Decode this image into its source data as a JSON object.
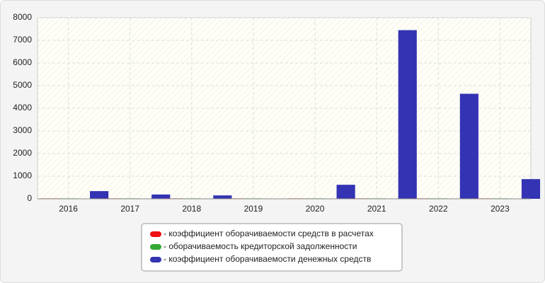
{
  "chart_data": {
    "type": "bar",
    "categories": [
      "2016",
      "2017",
      "2018",
      "2019",
      "2020",
      "2021",
      "2022",
      "2023"
    ],
    "series": [
      {
        "name": "- коэффициент оборачиваемости средств в расчетах",
        "color": "#ee1111",
        "values": [
          20,
          20,
          20,
          20,
          20,
          20,
          20,
          20
        ]
      },
      {
        "name": "- оборачиваемость кредиторской задолженности",
        "color": "#33aa33",
        "values": [
          20,
          20,
          20,
          20,
          20,
          20,
          20,
          20
        ]
      },
      {
        "name": "- коэффициент оборачиваемости денежных средств",
        "color": "#3333b3",
        "values": [
          340,
          190,
          150,
          0,
          620,
          7450,
          4640,
          870
        ]
      }
    ],
    "ylim": [
      0,
      8000
    ],
    "yticks": [
      0,
      1000,
      2000,
      3000,
      4000,
      5000,
      6000,
      7000,
      8000
    ],
    "grid": true
  }
}
